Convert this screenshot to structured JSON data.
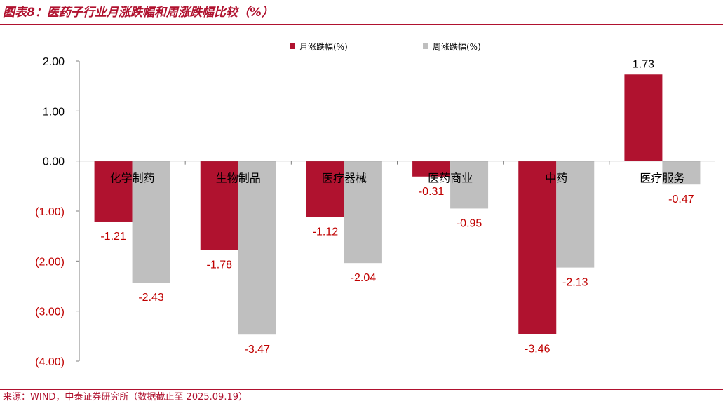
{
  "header": {
    "title": "图表8：医药子行业月涨跌幅和周涨跌幅比较（%）"
  },
  "footer": {
    "source": "来源：WIND，中泰证券研究所（数据截止至 2025.09.19）"
  },
  "colors": {
    "accent": "#b0122f",
    "monthly": "#b0122f",
    "weekly": "#bfbfbf",
    "negative_tick": "#c00000"
  },
  "chart_data": {
    "type": "bar",
    "categories": [
      "化学制药",
      "生物制品",
      "医疗器械",
      "医药商业",
      "中药",
      "医疗服务"
    ],
    "series": [
      {
        "name": "月涨跌幅(%)",
        "values": [
          -1.21,
          -1.78,
          -1.12,
          -0.31,
          -3.46,
          1.73
        ]
      },
      {
        "name": "周涨跌幅(%)",
        "values": [
          -2.43,
          -3.47,
          -2.04,
          -0.95,
          -2.13,
          -0.47
        ]
      }
    ],
    "value_labels": [
      [
        "-1.21",
        "-1.78",
        "-1.12",
        "-0.31",
        "-3.46",
        "1.73"
      ],
      [
        "-2.43",
        "-3.47",
        "-2.04",
        "-0.95",
        "-2.13",
        "-0.47"
      ]
    ],
    "ylim": [
      -4,
      2
    ],
    "yticks": [
      2,
      1,
      0,
      -1,
      -2,
      -3,
      -4
    ],
    "ytick_labels": [
      "2.00",
      "1.00",
      "0.00",
      "(1.00)",
      "(2.00)",
      "(3.00)",
      "(4.00)"
    ],
    "legend_position": "top-center",
    "grid": false
  }
}
